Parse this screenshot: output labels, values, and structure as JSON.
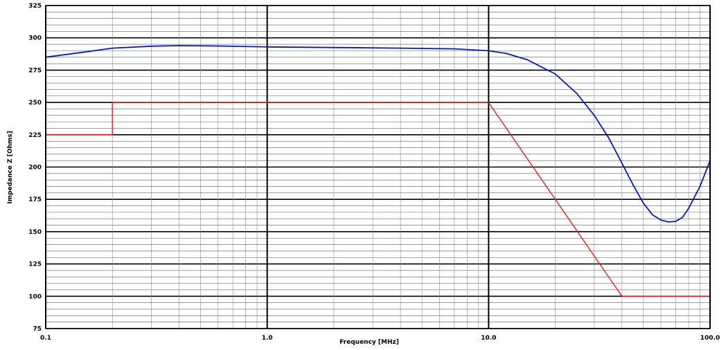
{
  "chart_data": {
    "type": "line",
    "title": "",
    "xlabel": "Frequency [MHz]",
    "ylabel": "Impedance Z [Ohms]",
    "x_scale": "log",
    "xlim": [
      0.1,
      100.0
    ],
    "ylim": [
      75,
      325
    ],
    "x_ticks": [
      0.1,
      1.0,
      10.0,
      100.0
    ],
    "x_tick_labels": [
      "0.1",
      "1.0",
      "10.0",
      "100.0"
    ],
    "y_ticks": [
      75,
      100,
      125,
      150,
      175,
      200,
      225,
      250,
      275,
      300,
      325
    ],
    "y_tick_labels": [
      "75",
      "100",
      "125",
      "150",
      "175",
      "200",
      "225",
      "250",
      "275",
      "300",
      "325"
    ],
    "grid": true,
    "legend": "none",
    "series": [
      {
        "color": "#0018c8",
        "x": [
          0.1,
          0.15,
          0.2,
          0.3,
          0.4,
          0.6,
          1.0,
          2.0,
          4.0,
          7.0,
          10.0,
          12.0,
          15.0,
          20.0,
          25.0,
          30.0,
          35.0,
          40.0,
          45.0,
          50.0,
          55.0,
          60.0,
          65.0,
          70.0,
          75.0,
          80.0,
          90.0,
          100.0
        ],
        "values": [
          285,
          289,
          292,
          293.5,
          294,
          293.7,
          293,
          292.5,
          292,
          291.5,
          290,
          288,
          283,
          272,
          257,
          240,
          222,
          203,
          186,
          172,
          163,
          159,
          157.5,
          158,
          161,
          168,
          185,
          205
        ]
      },
      {
        "color": "#ee1c1c",
        "x": [
          0.1,
          0.2,
          0.2,
          10.0,
          40.0,
          100.0
        ],
        "values": [
          225,
          225,
          250,
          250,
          100,
          100
        ]
      }
    ]
  }
}
